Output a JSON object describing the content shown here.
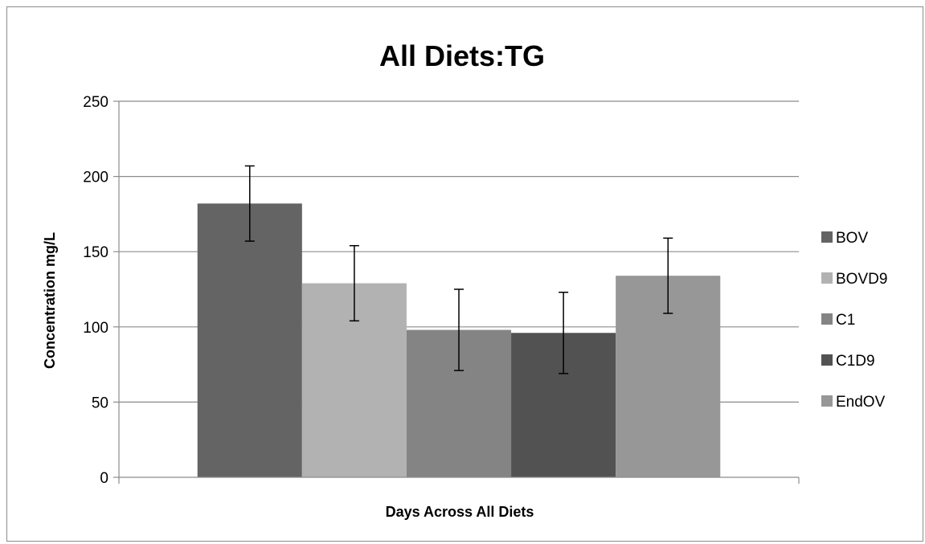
{
  "chart_data": {
    "type": "bar",
    "title": "All Diets:TG",
    "xlabel": "Days Across All Diets",
    "ylabel": "Concentration mg/L",
    "ylim": [
      0,
      250
    ],
    "yticks": [
      0,
      50,
      100,
      150,
      200,
      250
    ],
    "grid": true,
    "legend_position": "right",
    "series": [
      {
        "name": "BOV",
        "value": 182,
        "error": 25,
        "color": "#646464"
      },
      {
        "name": "BOVD9",
        "value": 129,
        "error": 25,
        "color": "#b2b2b2"
      },
      {
        "name": "C1",
        "value": 98,
        "error": 27,
        "color": "#848484"
      },
      {
        "name": "C1D9",
        "value": 96,
        "error": 27,
        "color": "#525252"
      },
      {
        "name": "EndOV",
        "value": 134,
        "error": 25,
        "color": "#979797"
      }
    ]
  }
}
